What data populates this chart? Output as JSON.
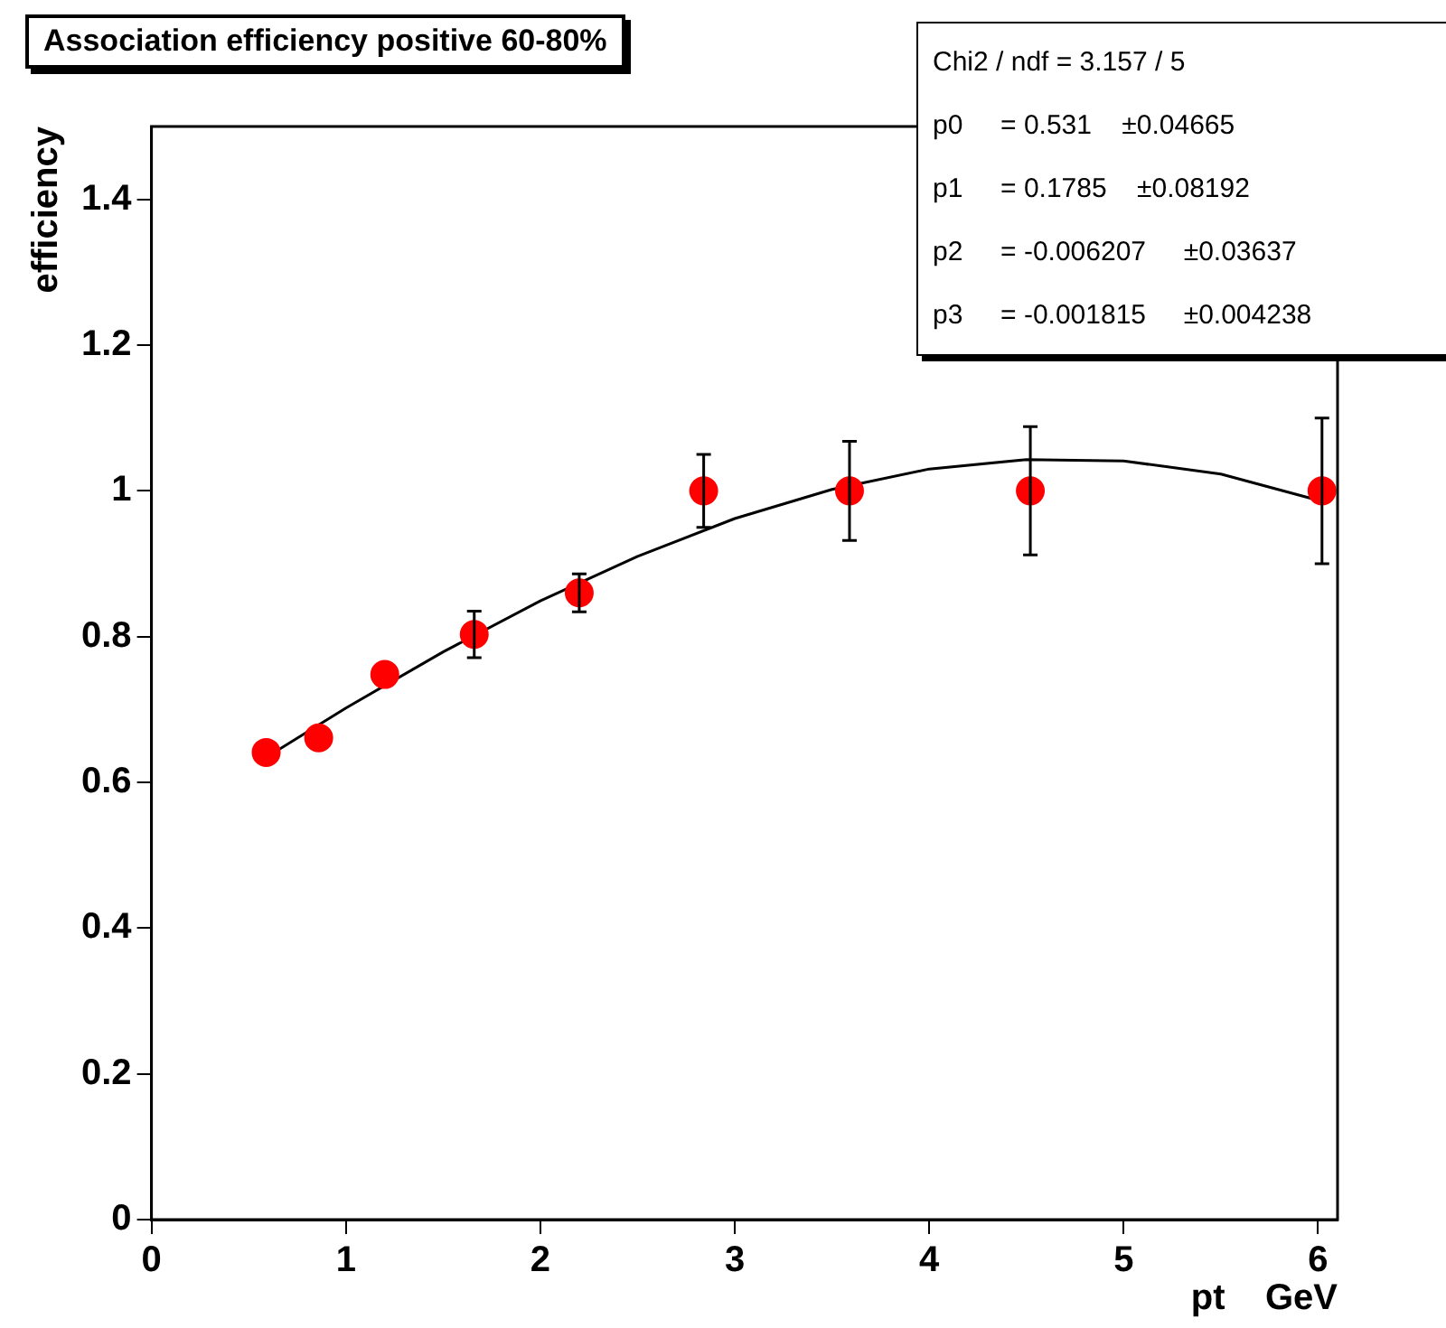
{
  "chart_data": {
    "type": "scatter",
    "title": "Association efficiency positive 60-80%",
    "xlabel": "pt    GeV",
    "ylabel": "efficiency",
    "xlim": [
      0,
      6.1
    ],
    "xticks": [
      0,
      1,
      2,
      3,
      4,
      5,
      6
    ],
    "ylim": [
      0,
      1.5
    ],
    "yticks": [
      0,
      0.2,
      0.4,
      0.6,
      0.8,
      1,
      1.2,
      1.4
    ],
    "grid": false,
    "legend": false,
    "annotations": [
      "Chi2 / ndf = 3.157 / 5",
      "p0     = 0.531    ±0.04665",
      "p1     = 0.1785    ±0.08192",
      "p2     = -0.006207     ±0.03637",
      "p3     = -0.001815     ±0.004238"
    ],
    "series": [
      {
        "marker": "circle",
        "color": "#ff0000",
        "x": [
          0.59,
          0.86,
          1.2,
          1.66,
          2.2,
          2.84,
          3.59,
          4.52,
          6.02
        ],
        "values": [
          0.641,
          0.661,
          0.748,
          0.803,
          0.86,
          1.0,
          1.0,
          1.0,
          1.0
        ],
        "errors": [
          null,
          null,
          null,
          0.032,
          0.026,
          0.05,
          0.068,
          0.088,
          0.1
        ]
      },
      {
        "type": "line",
        "color": "#000000",
        "line_style": "solid",
        "x": [
          0.6,
          1,
          1.5,
          2,
          2.5,
          3,
          3.5,
          4,
          4.5,
          5,
          5.5,
          6
        ],
        "values": [
          0.636,
          0.702,
          0.779,
          0.849,
          0.91,
          0.962,
          1.002,
          1.03,
          1.043,
          1.041,
          1.023,
          0.987
        ]
      }
    ]
  }
}
